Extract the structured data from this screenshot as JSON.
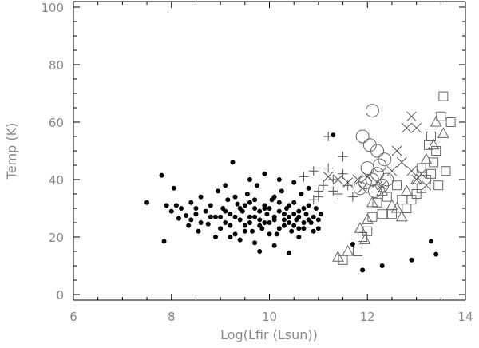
{
  "chart_data": {
    "type": "scatter",
    "xlabel": "Log(Lfir (Lsun))",
    "ylabel": "Temp (K)",
    "xlim": [
      6,
      14
    ],
    "ylim": [
      0,
      100
    ],
    "x_ticks": [
      "6",
      "8",
      "10",
      "12",
      "14"
    ],
    "y_ticks": [
      "0",
      "20",
      "40",
      "60",
      "80",
      "100"
    ],
    "grid": false,
    "series": [
      {
        "marker": "filled-circle",
        "points": [
          [
            7.5,
            32
          ],
          [
            7.8,
            41.5
          ],
          [
            7.85,
            18.5
          ],
          [
            7.9,
            31
          ],
          [
            8.0,
            29
          ],
          [
            8.1,
            31
          ],
          [
            8.2,
            30
          ],
          [
            8.05,
            37
          ],
          [
            8.15,
            26.5
          ],
          [
            8.3,
            27.5
          ],
          [
            8.35,
            24
          ],
          [
            8.4,
            32
          ],
          [
            8.5,
            28
          ],
          [
            8.55,
            22
          ],
          [
            8.6,
            34
          ],
          [
            8.7,
            29
          ],
          [
            8.75,
            24.5
          ],
          [
            8.8,
            31
          ],
          [
            8.9,
            27
          ],
          [
            8.95,
            36
          ],
          [
            9.0,
            23
          ],
          [
            9.05,
            30
          ],
          [
            9.1,
            25
          ],
          [
            9.15,
            33
          ],
          [
            9.2,
            28
          ],
          [
            9.25,
            46
          ],
          [
            9.3,
            21
          ],
          [
            9.35,
            31.5
          ],
          [
            9.4,
            26
          ],
          [
            9.45,
            29
          ],
          [
            9.5,
            24
          ],
          [
            9.55,
            35
          ],
          [
            9.6,
            27
          ],
          [
            9.65,
            22
          ],
          [
            9.7,
            30
          ],
          [
            9.75,
            38
          ],
          [
            9.8,
            26
          ],
          [
            9.85,
            23
          ],
          [
            9.9,
            31
          ],
          [
            9.95,
            28
          ],
          [
            10.0,
            25
          ],
          [
            10.05,
            33
          ],
          [
            10.1,
            27
          ],
          [
            10.15,
            21
          ],
          [
            10.2,
            29
          ],
          [
            10.25,
            36
          ],
          [
            10.3,
            24
          ],
          [
            10.35,
            30
          ],
          [
            10.4,
            27
          ],
          [
            10.45,
            22
          ],
          [
            10.5,
            32
          ],
          [
            10.55,
            26
          ],
          [
            10.6,
            29
          ],
          [
            10.65,
            35
          ],
          [
            10.7,
            23
          ],
          [
            10.75,
            28
          ],
          [
            10.8,
            31
          ],
          [
            10.85,
            25
          ],
          [
            10.9,
            27
          ],
          [
            10.95,
            30
          ],
          [
            11.0,
            26
          ],
          [
            11.05,
            28
          ],
          [
            9.1,
            38
          ],
          [
            9.3,
            34
          ],
          [
            9.6,
            40
          ],
          [
            9.9,
            42
          ],
          [
            10.2,
            40
          ],
          [
            10.5,
            39
          ],
          [
            10.8,
            37
          ],
          [
            9.8,
            15
          ],
          [
            10.4,
            14.5
          ],
          [
            9.4,
            19
          ],
          [
            9.7,
            18
          ],
          [
            10.1,
            17
          ],
          [
            10.6,
            20
          ],
          [
            9.2,
            20
          ],
          [
            8.9,
            20
          ],
          [
            10.9,
            22
          ],
          [
            11.0,
            23
          ],
          [
            9.5,
            31
          ],
          [
            9.6,
            32
          ],
          [
            9.7,
            27
          ],
          [
            9.8,
            29
          ],
          [
            9.9,
            25
          ],
          [
            10.0,
            30
          ],
          [
            10.1,
            26
          ],
          [
            10.2,
            32
          ],
          [
            10.3,
            28
          ],
          [
            10.4,
            31
          ],
          [
            10.5,
            24
          ],
          [
            10.6,
            27
          ],
          [
            10.7,
            30
          ],
          [
            10.8,
            26
          ],
          [
            9.3,
            27
          ],
          [
            9.4,
            30
          ],
          [
            9.5,
            22
          ],
          [
            9.6,
            25
          ],
          [
            9.7,
            33
          ],
          [
            9.8,
            24
          ],
          [
            9.9,
            30
          ],
          [
            10.0,
            21
          ],
          [
            10.1,
            34
          ],
          [
            10.2,
            23
          ],
          [
            10.3,
            26
          ],
          [
            10.4,
            25
          ],
          [
            10.5,
            28
          ],
          [
            10.6,
            23
          ],
          [
            10.7,
            25
          ],
          [
            9.0,
            27
          ],
          [
            9.1,
            29
          ],
          [
            9.2,
            24
          ],
          [
            8.8,
            27
          ],
          [
            8.6,
            25
          ],
          [
            8.5,
            30
          ],
          [
            8.4,
            26
          ],
          [
            11.3,
            55.5
          ],
          [
            11.7,
            17.5
          ],
          [
            11.9,
            8.5
          ],
          [
            12.3,
            10
          ],
          [
            12.9,
            12
          ],
          [
            13.3,
            18.5
          ],
          [
            13.4,
            14
          ]
        ]
      },
      {
        "marker": "plus",
        "points": [
          [
            10.7,
            41
          ],
          [
            10.9,
            43
          ],
          [
            11.0,
            36
          ],
          [
            11.1,
            38
          ],
          [
            11.2,
            44
          ],
          [
            11.3,
            40
          ],
          [
            11.4,
            35
          ],
          [
            11.5,
            42
          ],
          [
            11.6,
            38
          ],
          [
            11.7,
            34
          ],
          [
            11.2,
            55
          ],
          [
            11.5,
            48
          ],
          [
            10.9,
            33
          ],
          [
            11.0,
            34
          ],
          [
            11.3,
            36
          ]
        ]
      },
      {
        "marker": "cross",
        "points": [
          [
            11.2,
            41
          ],
          [
            11.4,
            40
          ],
          [
            11.6,
            39
          ],
          [
            11.8,
            40
          ],
          [
            12.0,
            41
          ],
          [
            11.9,
            37
          ],
          [
            12.2,
            39
          ],
          [
            12.6,
            50
          ],
          [
            12.7,
            46
          ],
          [
            12.9,
            43
          ],
          [
            13.0,
            40
          ],
          [
            13.1,
            42
          ],
          [
            12.8,
            58
          ],
          [
            12.9,
            62
          ],
          [
            13.0,
            58
          ],
          [
            12.5,
            43
          ],
          [
            12.3,
            38
          ],
          [
            13.2,
            38
          ]
        ]
      },
      {
        "marker": "open-circle",
        "points": [
          [
            12.1,
            64
          ],
          [
            11.9,
            55
          ],
          [
            12.05,
            52
          ],
          [
            12.2,
            50
          ],
          [
            12.35,
            47
          ],
          [
            12.0,
            44
          ],
          [
            12.2,
            42
          ],
          [
            12.1,
            40
          ],
          [
            11.95,
            39
          ],
          [
            12.3,
            38
          ],
          [
            12.15,
            36
          ],
          [
            11.85,
            37
          ],
          [
            12.25,
            45
          ],
          [
            12.4,
            40
          ]
        ]
      },
      {
        "marker": "open-square",
        "points": [
          [
            11.5,
            12
          ],
          [
            11.8,
            15
          ],
          [
            11.9,
            20
          ],
          [
            12.0,
            22
          ],
          [
            12.1,
            27
          ],
          [
            12.3,
            28
          ],
          [
            12.5,
            28
          ],
          [
            12.8,
            30
          ],
          [
            13.0,
            35
          ],
          [
            13.1,
            37
          ],
          [
            13.2,
            40
          ],
          [
            13.3,
            42
          ],
          [
            13.35,
            46
          ],
          [
            13.4,
            50
          ],
          [
            13.5,
            62
          ],
          [
            13.55,
            69
          ],
          [
            13.7,
            60
          ],
          [
            13.3,
            55
          ],
          [
            13.1,
            44
          ],
          [
            12.9,
            33
          ],
          [
            12.7,
            33
          ],
          [
            12.6,
            38
          ],
          [
            12.4,
            34
          ],
          [
            12.2,
            32
          ],
          [
            13.6,
            43
          ],
          [
            13.45,
            38
          ],
          [
            13.25,
            52
          ]
        ]
      },
      {
        "marker": "open-triangle",
        "points": [
          [
            11.4,
            13
          ],
          [
            11.6,
            15
          ],
          [
            11.85,
            23
          ],
          [
            12.0,
            26
          ],
          [
            12.1,
            32
          ],
          [
            12.3,
            36
          ],
          [
            12.5,
            31
          ],
          [
            12.6,
            30
          ],
          [
            12.8,
            36
          ],
          [
            13.0,
            40
          ],
          [
            13.2,
            47
          ],
          [
            13.35,
            52
          ],
          [
            13.4,
            60
          ],
          [
            13.55,
            56
          ],
          [
            11.95,
            19
          ],
          [
            12.7,
            27
          ]
        ]
      }
    ]
  }
}
